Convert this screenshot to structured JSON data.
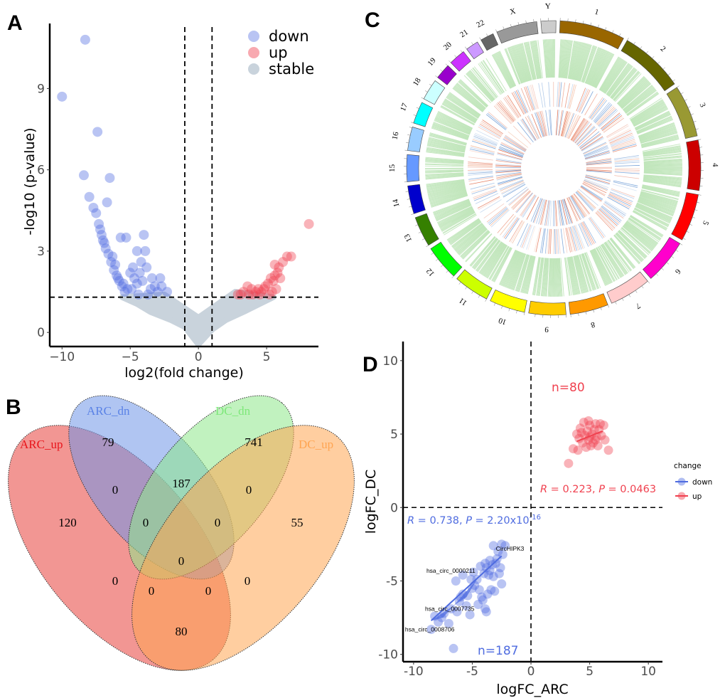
{
  "panels": {
    "a": "A",
    "b": "B",
    "c": "C",
    "d": "D"
  },
  "colors": {
    "down": "#4f6ce0",
    "up": "#f0414f",
    "stable": "#c9d3dc"
  },
  "chart_data": [
    {
      "type": "scatter",
      "id": "volcano",
      "xlabel": "log2(fold change)",
      "ylabel": "-log10 (p-value)",
      "xlim": [
        -10.9,
        8.8
      ],
      "ylim": [
        -0.52,
        11.4
      ],
      "xticks": [
        {
          "v": -10,
          "label": "−10"
        },
        {
          "v": -5,
          "label": "−5"
        },
        {
          "v": 0,
          "label": "0"
        },
        {
          "v": 5,
          "label": "5"
        }
      ],
      "yticks": [
        {
          "v": 0,
          "label": "0"
        },
        {
          "v": 3,
          "label": "3"
        },
        {
          "v": 6,
          "label": "6"
        },
        {
          "v": 9,
          "label": "9"
        }
      ],
      "thresholds": {
        "x": [
          -1,
          1
        ],
        "y": 1.3
      },
      "legend": [
        "down",
        "up",
        "stable"
      ],
      "legend_position": "top-right",
      "stable_region": [
        [
          -5.6,
          1.3
        ],
        [
          -4.5,
          1.05
        ],
        [
          -3.5,
          0.75
        ],
        [
          -2,
          0.45
        ],
        [
          -1,
          0.2
        ],
        [
          0,
          -0.45
        ],
        [
          1,
          0.1
        ],
        [
          2,
          0.45
        ],
        [
          3.5,
          0.8
        ],
        [
          4.5,
          1.05
        ],
        [
          5.5,
          1.3
        ],
        [
          2.7,
          1.5
        ],
        [
          0,
          0.55
        ],
        [
          -2.5,
          1.4
        ]
      ],
      "series": [
        {
          "name": "down",
          "points": [
            [
              -8.3,
              10.8
            ],
            [
              -10,
              8.7
            ],
            [
              -7.4,
              7.4
            ],
            [
              -8.4,
              5.8
            ],
            [
              -6.5,
              5.7
            ],
            [
              -8,
              5.0
            ],
            [
              -6.7,
              4.8
            ],
            [
              -7.7,
              4.6
            ],
            [
              -7.5,
              4.4
            ],
            [
              -7.3,
              4.0
            ],
            [
              -7.2,
              3.8
            ],
            [
              -7.1,
              3.6
            ],
            [
              -7,
              3.4
            ],
            [
              -6.8,
              3.1
            ],
            [
              -6.6,
              2.9
            ],
            [
              -6.4,
              2.6
            ],
            [
              -6.2,
              2.3
            ],
            [
              -6,
              2.1
            ],
            [
              -5.8,
              1.9
            ],
            [
              -5.6,
              1.7
            ],
            [
              -5.4,
              1.5
            ],
            [
              -5.7,
              3.5
            ],
            [
              -5.3,
              3.5
            ],
            [
              -4,
              3.6
            ],
            [
              -4.5,
              3.0
            ],
            [
              -3.9,
              3.0
            ],
            [
              -4.2,
              2.6
            ],
            [
              -4.8,
              2.4
            ],
            [
              -5,
              2.2
            ],
            [
              -3.8,
              2.4
            ],
            [
              -3.4,
              2.0
            ],
            [
              -2.8,
              2.0
            ],
            [
              -4.5,
              1.8
            ],
            [
              -4.1,
              1.9
            ],
            [
              -3.5,
              1.6
            ],
            [
              -2.7,
              1.7
            ],
            [
              -2.3,
              1.5
            ],
            [
              -3,
              1.5
            ],
            [
              -5.2,
              1.6
            ],
            [
              -4.4,
              1.4
            ],
            [
              -3.7,
              1.4
            ],
            [
              -6.1,
              2.5
            ],
            [
              -6.3,
              2.8
            ],
            [
              -6.9,
              3.3
            ],
            [
              -5.9,
              2.0
            ],
            [
              -5.5,
              1.8
            ],
            [
              -4.9,
              1.6
            ],
            [
              -4.7,
              2.0
            ],
            [
              -4.3,
              2.2
            ],
            [
              -3.2,
              1.7
            ]
          ]
        },
        {
          "name": "up",
          "points": [
            [
              8.1,
              4.0
            ],
            [
              6.8,
              2.8
            ],
            [
              6.5,
              2.8
            ],
            [
              6.2,
              2.6
            ],
            [
              5.9,
              2.4
            ],
            [
              5.8,
              2.2
            ],
            [
              5.6,
              2.1
            ],
            [
              5.5,
              1.9
            ],
            [
              5.3,
              2.0
            ],
            [
              5.1,
              1.8
            ],
            [
              4.9,
              1.7
            ],
            [
              4.8,
              1.6
            ],
            [
              4.6,
              1.5
            ],
            [
              4.4,
              1.6
            ],
            [
              4.2,
              1.5
            ],
            [
              3.9,
              1.6
            ],
            [
              3.6,
              1.7
            ],
            [
              3.3,
              1.5
            ],
            [
              3.1,
              1.4
            ],
            [
              2.9,
              1.4
            ],
            [
              5.4,
              1.5
            ],
            [
              5.7,
              1.6
            ],
            [
              5.2,
              1.4
            ],
            [
              4.5,
              1.4
            ],
            [
              4,
              1.4
            ],
            [
              6,
              2
            ],
            [
              5.6,
              2.5
            ],
            [
              3.7,
              1.4
            ]
          ]
        }
      ]
    },
    {
      "type": "venn",
      "id": "venn",
      "sets": [
        {
          "name": "ARC_up",
          "color": "#e8403b"
        },
        {
          "name": "ARC_dn",
          "color": "#6f96e8"
        },
        {
          "name": "DC_dn",
          "color": "#8ee88a"
        },
        {
          "name": "DC_up",
          "color": "#ffa552"
        }
      ],
      "regions": {
        "ARC_up_only": "120",
        "ARC_dn_only": "79",
        "DC_dn_only": "741",
        "DC_up_only": "55",
        "ARC_up_ARC_dn": "0",
        "ARC_dn_DC_dn": "187",
        "DC_dn_DC_up": "0",
        "ARC_up_ARC_dn_DC_dn": "0",
        "ARC_dn_DC_dn_DC_up": "0",
        "all": "0",
        "ARC_up_DC_dn": "0",
        "ARC_dn_DC_up": "0",
        "ARC_up_DC_dn_DC_up": "0",
        "ARC_up_ARC_dn_DC_up": "0",
        "ARC_up_DC_up": "80"
      }
    },
    {
      "type": "circos",
      "id": "circos",
      "chromosomes": [
        {
          "label": "1",
          "size": 249,
          "color": "#996600"
        },
        {
          "label": "2",
          "size": 243,
          "color": "#666600"
        },
        {
          "label": "3",
          "size": 198,
          "color": "#999933"
        },
        {
          "label": "4",
          "size": 191,
          "color": "#cc0000"
        },
        {
          "label": "5",
          "size": 181,
          "color": "#ff0000"
        },
        {
          "label": "6",
          "size": 171,
          "color": "#ff00cc"
        },
        {
          "label": "7",
          "size": 159,
          "color": "#ffcccc"
        },
        {
          "label": "8",
          "size": 146,
          "color": "#ff9900"
        },
        {
          "label": "9",
          "size": 141,
          "color": "#ffcc00"
        },
        {
          "label": "10",
          "size": 136,
          "color": "#ffff00"
        },
        {
          "label": "11",
          "size": 135,
          "color": "#ccff00"
        },
        {
          "label": "12",
          "size": 134,
          "color": "#00ff00"
        },
        {
          "label": "13",
          "size": 115,
          "color": "#358000"
        },
        {
          "label": "14",
          "size": 107,
          "color": "#0000cc"
        },
        {
          "label": "15",
          "size": 102,
          "color": "#6699ff"
        },
        {
          "label": "16",
          "size": 90,
          "color": "#99ccff"
        },
        {
          "label": "17",
          "size": 83,
          "color": "#00ffff"
        },
        {
          "label": "18",
          "size": 80,
          "color": "#ccffff"
        },
        {
          "label": "19",
          "size": 59,
          "color": "#9900cc"
        },
        {
          "label": "20",
          "size": 63,
          "color": "#cc33ff"
        },
        {
          "label": "21",
          "size": 48,
          "color": "#cc99ff"
        },
        {
          "label": "22",
          "size": 51,
          "color": "#666666"
        },
        {
          "label": "X",
          "size": 155,
          "color": "#999999"
        },
        {
          "label": "Y",
          "size": 57,
          "color": "#cccccc"
        }
      ],
      "tracks": [
        "density (green)",
        "ARC log fold change (red/blue)",
        "DC log fold change (red/blue)"
      ]
    },
    {
      "type": "scatter",
      "id": "correlation",
      "xlabel": "logFC_ARC",
      "ylabel": "logFC_DC",
      "xlim": [
        -10.9,
        11.2
      ],
      "ylim": [
        -10.5,
        11.3
      ],
      "xticks": [
        {
          "v": -10,
          "label": "-10"
        },
        {
          "v": -5,
          "label": "-5"
        },
        {
          "v": 0,
          "label": "0"
        },
        {
          "v": 5,
          "label": "5"
        },
        {
          "v": 10,
          "label": "10"
        }
      ],
      "yticks": [
        {
          "v": -10,
          "label": "-10"
        },
        {
          "v": -5,
          "label": "-5"
        },
        {
          "v": 0,
          "label": "0"
        },
        {
          "v": 5,
          "label": "5"
        },
        {
          "v": 10,
          "label": "10"
        }
      ],
      "legend_title": "change",
      "legend": [
        "down",
        "up"
      ],
      "legend_position": "right",
      "annotations": {
        "up_n": "n=80",
        "down_n": "n=187",
        "up_stat": {
          "r_label": "R",
          "r_val": " = 0.223, ",
          "p_label": "P",
          "p_val": " = 0.0463"
        },
        "down_stat": {
          "r_label": "R",
          "r_val": " = 0.738, ",
          "p_label": "P",
          "p_val": " = 2.20x10",
          "p_exp": "-16"
        }
      },
      "gene_labels": [
        {
          "text": "CircHIPK3",
          "x": -2.5,
          "y": -2.8
        },
        {
          "text": "hsa_circ_0000211",
          "x": -6.7,
          "y": -4.3
        },
        {
          "text": "hsa_circ_0007735",
          "x": -6.8,
          "y": -6.9
        },
        {
          "text": "hsa_circ_0008706",
          "x": -8.5,
          "y": -8.3
        }
      ],
      "fit_lines": {
        "down": [
          [
            -8.5,
            -7.7
          ],
          [
            -2.5,
            -3.3
          ]
        ],
        "up": [
          [
            3.9,
            4.5
          ],
          [
            6.1,
            5.2
          ]
        ]
      },
      "series": [
        {
          "name": "down",
          "points": [
            [
              -2.5,
              -2.5
            ],
            [
              -2.2,
              -2.6
            ],
            [
              -3.2,
              -2.6
            ],
            [
              -2.8,
              -3.0
            ],
            [
              -2.4,
              -3.2
            ],
            [
              -3.5,
              -3.6
            ],
            [
              -3.3,
              -3.9
            ],
            [
              -3,
              -3.8
            ],
            [
              -2.6,
              -4.1
            ],
            [
              -3.8,
              -4.1
            ],
            [
              -4,
              -4.5
            ],
            [
              -3.6,
              -4.6
            ],
            [
              -4.9,
              -4.4
            ],
            [
              -5.8,
              -4.6
            ],
            [
              -5.1,
              -4.9
            ],
            [
              -4.6,
              -4.9
            ],
            [
              -3.2,
              -4.7
            ],
            [
              -2.5,
              -5.2
            ],
            [
              -6.4,
              -5.0
            ],
            [
              -4.8,
              -5.3
            ],
            [
              -3.4,
              -5.6
            ],
            [
              -3.7,
              -5.9
            ],
            [
              -3.1,
              -5.7
            ],
            [
              -5.4,
              -6.0
            ],
            [
              -4.2,
              -6.1
            ],
            [
              -4.1,
              -6.3
            ],
            [
              -4.5,
              -6.6
            ],
            [
              -6.1,
              -6.4
            ],
            [
              -5.8,
              -5.9
            ],
            [
              -6.8,
              -6.9
            ],
            [
              -7.4,
              -7.2
            ],
            [
              -7.9,
              -7.8
            ],
            [
              -7.6,
              -7.5
            ],
            [
              -8.2,
              -7.4
            ],
            [
              -6.3,
              -7.1
            ],
            [
              -5.2,
              -7.3
            ],
            [
              -3.8,
              -7.1
            ],
            [
              -3.9,
              -6.9
            ],
            [
              -8.5,
              -8.3
            ],
            [
              -6.6,
              -9.6
            ],
            [
              -7,
              -7.9
            ],
            [
              -5.5,
              -6.7
            ],
            [
              -4.4,
              -5.6
            ],
            [
              -2.9,
              -3.5
            ],
            [
              -3.9,
              -3.8
            ],
            [
              -4.3,
              -4.0
            ],
            [
              -5,
              -5.5
            ],
            [
              -6,
              -6.1
            ],
            [
              -2.7,
              -4.5
            ],
            [
              -3.5,
              -4.3
            ]
          ]
        },
        {
          "name": "up",
          "points": [
            [
              5,
              5.6
            ],
            [
              4.5,
              5.8
            ],
            [
              5.5,
              5.7
            ],
            [
              4.2,
              5.4
            ],
            [
              5.8,
              5.3
            ],
            [
              6.2,
              5.6
            ],
            [
              4.8,
              5.2
            ],
            [
              5.2,
              5.0
            ],
            [
              4.6,
              4.9
            ],
            [
              5.6,
              4.8
            ],
            [
              4.1,
              4.7
            ],
            [
              6.0,
              4.9
            ],
            [
              4.9,
              4.6
            ],
            [
              5.3,
              4.4
            ],
            [
              4.4,
              4.4
            ],
            [
              5.7,
              4.2
            ],
            [
              4.7,
              4.1
            ],
            [
              5.1,
              4.2
            ],
            [
              6.3,
              4.6
            ],
            [
              3.6,
              4.0
            ],
            [
              4.0,
              3.9
            ],
            [
              6.6,
              3.9
            ],
            [
              3.2,
              3.0
            ],
            [
              5.4,
              5.3
            ],
            [
              4.3,
              5.1
            ],
            [
              5.9,
              5.7
            ],
            [
              4.9,
              5.9
            ],
            [
              3.9,
              5.0
            ],
            [
              5.0,
              4.8
            ],
            [
              5.5,
              4.6
            ]
          ]
        }
      ]
    }
  ]
}
